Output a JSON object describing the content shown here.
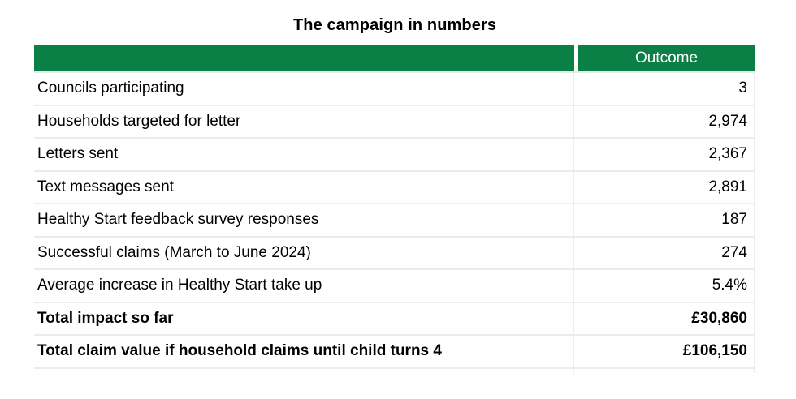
{
  "title": "The campaign in numbers",
  "table": {
    "header": {
      "metric_label": "",
      "outcome_label": "Outcome"
    },
    "rows": [
      {
        "label": "Councils participating",
        "value": "3"
      },
      {
        "label": "Households targeted for letter",
        "value": "2,974"
      },
      {
        "label": "Letters sent",
        "value": "2,367"
      },
      {
        "label": "Text messages sent",
        "value": "2,891"
      },
      {
        "label": "Healthy Start feedback survey responses",
        "value": "187"
      },
      {
        "label": "Successful claims (March to June 2024)",
        "value": "274"
      },
      {
        "label": "Average increase in Healthy Start take up",
        "value": "5.4%"
      },
      {
        "label": "Total impact so far",
        "value": "£30,860"
      },
      {
        "label": "Total claim value if household claims until child turns 4",
        "value": "£106,150"
      }
    ]
  },
  "colors": {
    "header_bg": "#0c7f46",
    "header_text": "#ffffff",
    "border": "#ececec",
    "text": "#000000",
    "background": "#ffffff"
  },
  "chart_data": {
    "type": "table",
    "title": "The campaign in numbers",
    "columns": [
      "",
      "Outcome"
    ],
    "categories": [
      "Councils participating",
      "Households targeted for letter",
      "Letters sent",
      "Text messages sent",
      "Healthy Start feedback survey responses",
      "Successful claims (March to June 2024)",
      "Average increase in Healthy Start take up",
      "Total impact so far",
      "Total claim value if household claims until child turns 4"
    ],
    "values": [
      "3",
      "2,974",
      "2,367",
      "2,891",
      "187",
      "274",
      "5.4%",
      "£30,860",
      "£106,150"
    ],
    "bold_rows": [
      "Total impact so far",
      "Total claim value if household claims until child turns 4"
    ],
    "layout": {
      "value_alignment": "right",
      "header_style": "green-banner",
      "grid": "light-gray"
    }
  }
}
